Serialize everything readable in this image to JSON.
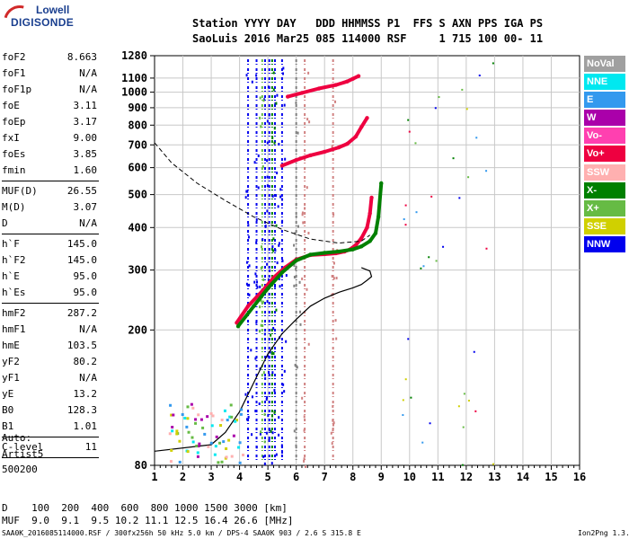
{
  "logo": {
    "line1": "Lowell",
    "line2": "DIGISONDE"
  },
  "header": {
    "line1": "Station YYYY DAY   DDD HHMMSS P1  FFS S AXN PPS IGA PS",
    "line2": "SaoLuis 2016 Mar25 085 114000 RSF     1 715 100 00- 11"
  },
  "params": [
    {
      "key": "foF2",
      "value": "8.663"
    },
    {
      "key": "foF1",
      "value": "N/A"
    },
    {
      "key": "foF1p",
      "value": "N/A"
    },
    {
      "key": "foE",
      "value": "3.11"
    },
    {
      "key": "foEp",
      "value": "3.17"
    },
    {
      "key": "fxI",
      "value": "9.00"
    },
    {
      "key": "foEs",
      "value": "3.85"
    },
    {
      "key": "fmin",
      "value": "1.60"
    },
    {
      "key": "MUF(D)",
      "value": "26.55"
    },
    {
      "key": "M(D)",
      "value": "3.07"
    },
    {
      "key": "D",
      "value": "N/A"
    },
    {
      "key": "h`F",
      "value": "145.0"
    },
    {
      "key": "h`F2",
      "value": "145.0"
    },
    {
      "key": "h`E",
      "value": "95.0"
    },
    {
      "key": "h`Es",
      "value": "95.0"
    },
    {
      "key": "hmF2",
      "value": "287.2"
    },
    {
      "key": "hmF1",
      "value": "N/A"
    },
    {
      "key": "hmE",
      "value": "103.5"
    },
    {
      "key": "yF2",
      "value": "80.2"
    },
    {
      "key": "yF1",
      "value": "N/A"
    },
    {
      "key": "yE",
      "value": "13.2"
    },
    {
      "key": "B0",
      "value": "128.3"
    },
    {
      "key": "B1",
      "value": "1.01"
    },
    {
      "key": "C-level",
      "value": "11"
    }
  ],
  "auto": {
    "line1": "Auto:",
    "line2": "Artist5",
    "line3": "500200"
  },
  "legend": [
    {
      "label": "NoVal",
      "color": "#a0a0a0"
    },
    {
      "label": "NNE",
      "color": "#00e8f0"
    },
    {
      "label": "E",
      "color": "#3399ee"
    },
    {
      "label": "W",
      "color": "#aa00aa"
    },
    {
      "label": "Vo-",
      "color": "#ff40b0"
    },
    {
      "label": "Vo+",
      "color": "#ee0040"
    },
    {
      "label": "SSW",
      "color": "#ffb0b0"
    },
    {
      "label": "X-",
      "color": "#008000"
    },
    {
      "label": "X+",
      "color": "#66bb44"
    },
    {
      "label": "SSE",
      "color": "#d0d000"
    },
    {
      "label": "NNW",
      "color": "#0000ee"
    }
  ],
  "bottom": {
    "d_line": "D    100  200  400  600  800 1000 1500 3000 [km]",
    "muf_line": "MUF  9.0  9.1  9.5 10.2 11.1 12.5 16.4 26.6 [MHz]"
  },
  "footer": {
    "left": "SAA0K_2016085114000.RSF / 300fx256h 50 kHz 5.0 km / DPS-4 SAA0K 903 / 2.6 S 315.8 E",
    "right": "Ion2Png 1.3.17"
  },
  "chart_data": {
    "type": "scatter",
    "x_ticks": [
      "1",
      "2",
      "3",
      "4",
      "5",
      "6",
      "7",
      "8",
      "9",
      "10",
      "11",
      "12",
      "13",
      "14",
      "15",
      "16"
    ],
    "y_ticks": [
      "80",
      "200",
      "300",
      "400",
      "500",
      "600",
      "700",
      "800",
      "900",
      "1000",
      "1100",
      "1280"
    ],
    "xlim": [
      1,
      16
    ],
    "ylim": [
      80,
      1280
    ],
    "y_scale": "log",
    "traces": [
      {
        "name": "O-trace F2",
        "color": "#ee0040",
        "x": [
          3.9,
          4.3,
          4.8,
          5.2,
          5.6,
          6.0,
          6.5,
          7.0,
          7.4,
          7.7,
          7.9,
          8.1,
          8.3,
          8.5,
          8.6,
          8.66
        ],
        "y": [
          210,
          235,
          260,
          285,
          305,
          322,
          332,
          334,
          336,
          340,
          345,
          355,
          372,
          400,
          440,
          490
        ]
      },
      {
        "name": "X-trace F2",
        "color": "#008000",
        "x": [
          3.95,
          4.5,
          5.0,
          5.5,
          6.0,
          6.5,
          7.0,
          7.5,
          8.0,
          8.3,
          8.6,
          8.8,
          8.9,
          9.0
        ],
        "y": [
          205,
          235,
          265,
          295,
          320,
          333,
          337,
          340,
          345,
          352,
          365,
          385,
          430,
          540
        ]
      },
      {
        "name": "Second hop O",
        "color": "#ee0040",
        "x": [
          5.5,
          6.0,
          6.5,
          7.0,
          7.5,
          7.8,
          8.1,
          8.3,
          8.5
        ],
        "y": [
          608,
          632,
          652,
          668,
          688,
          705,
          740,
          790,
          840
        ]
      },
      {
        "name": "Third hop",
        "color": "#ee0040",
        "x": [
          5.7,
          6.2,
          6.8,
          7.4,
          7.8,
          8.0,
          8.2
        ],
        "y": [
          970,
          995,
          1025,
          1050,
          1075,
          1095,
          1115
        ]
      }
    ],
    "profile": {
      "x": [
        1.0,
        3.0,
        3.5,
        4.0,
        4.5,
        5.0,
        5.5,
        6.0,
        6.5,
        7.0,
        7.5,
        8.0,
        8.3,
        8.5,
        8.66,
        8.6,
        8.3
      ],
      "y": [
        88,
        92,
        100,
        115,
        140,
        170,
        195,
        215,
        235,
        248,
        258,
        266,
        272,
        280,
        287,
        298,
        305
      ]
    },
    "muf_curve": {
      "x": [
        1.0,
        1.6,
        2.5,
        3.5,
        4.5,
        5.5,
        6.5,
        7.5,
        8.3,
        8.6
      ],
      "y": [
        710,
        620,
        540,
        480,
        430,
        395,
        370,
        360,
        365,
        380
      ]
    },
    "vertical_bands": [
      {
        "x": 4.3,
        "color": "#0000ee"
      },
      {
        "x": 4.6,
        "color": "#0000ee"
      },
      {
        "x": 4.9,
        "color": "#0000ee"
      },
      {
        "x": 5.05,
        "color": "#0000ee"
      },
      {
        "x": 5.25,
        "color": "#0000ee"
      },
      {
        "x": 5.5,
        "color": "#0000ee"
      },
      {
        "x": 4.8,
        "color": "#66bb44"
      },
      {
        "x": 5.15,
        "color": "#008000"
      },
      {
        "x": 6.0,
        "color": "#808080"
      },
      {
        "x": 6.3,
        "color": "#d08080"
      },
      {
        "x": 7.3,
        "color": "#d08080"
      }
    ]
  }
}
